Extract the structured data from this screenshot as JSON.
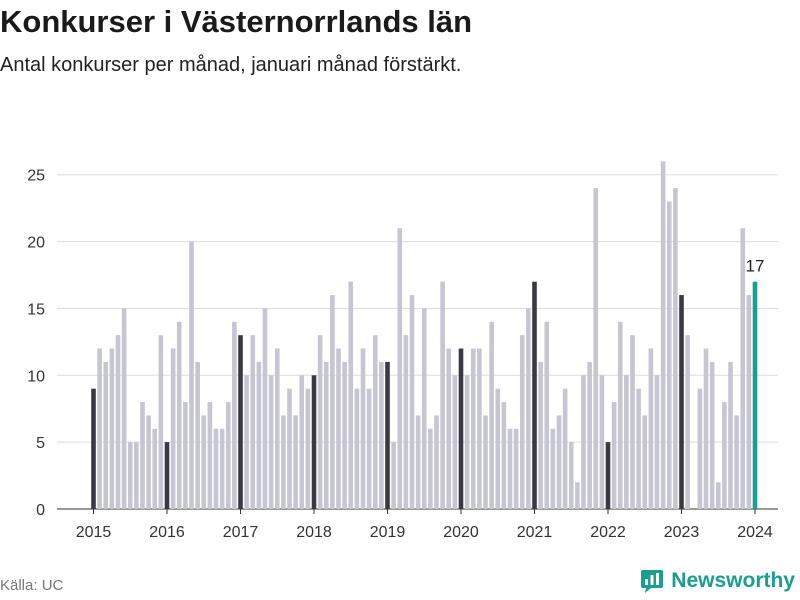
{
  "title": "Konkurser i Västernorrlands län",
  "subtitle": "Antal konkurser per månad, januari månad förstärkt.",
  "source": "Källa: UC",
  "brand": "Newsworthy",
  "colors": {
    "bar": "#c6c5d2",
    "january": "#3a3943",
    "highlight": "#17a08f",
    "grid": "#dddddd",
    "text": "#333333"
  },
  "chart_data": {
    "type": "bar",
    "start": "2015-01",
    "ylim": [
      0,
      27
    ],
    "yticks": [
      0,
      5,
      10,
      15,
      20,
      25
    ],
    "xticks": [
      "2015",
      "2016",
      "2017",
      "2018",
      "2019",
      "2020",
      "2021",
      "2022",
      "2023",
      "2024"
    ],
    "annotation": {
      "label": "17",
      "category": "2024-01"
    },
    "series": [
      {
        "values": [
          9,
          12,
          11,
          12,
          13,
          15,
          5,
          5,
          8,
          7,
          6,
          13,
          5,
          12,
          14,
          8,
          20,
          11,
          7,
          8,
          6,
          6,
          8,
          14,
          13,
          10,
          13,
          11,
          15,
          10,
          12,
          7,
          9,
          7,
          10,
          9,
          10,
          13,
          11,
          16,
          12,
          11,
          17,
          9,
          12,
          9,
          13,
          11,
          11,
          5,
          21,
          13,
          16,
          7,
          15,
          6,
          7,
          17,
          12,
          10,
          12,
          10,
          12,
          12,
          7,
          14,
          9,
          8,
          6,
          6,
          13,
          15,
          17,
          11,
          14,
          6,
          7,
          9,
          5,
          2,
          10,
          11,
          24,
          10,
          5,
          8,
          14,
          10,
          13,
          9,
          7,
          12,
          10,
          26,
          23,
          24,
          16,
          13,
          0,
          9,
          12,
          11,
          2,
          8,
          11,
          7,
          21,
          16,
          17
        ]
      }
    ]
  }
}
